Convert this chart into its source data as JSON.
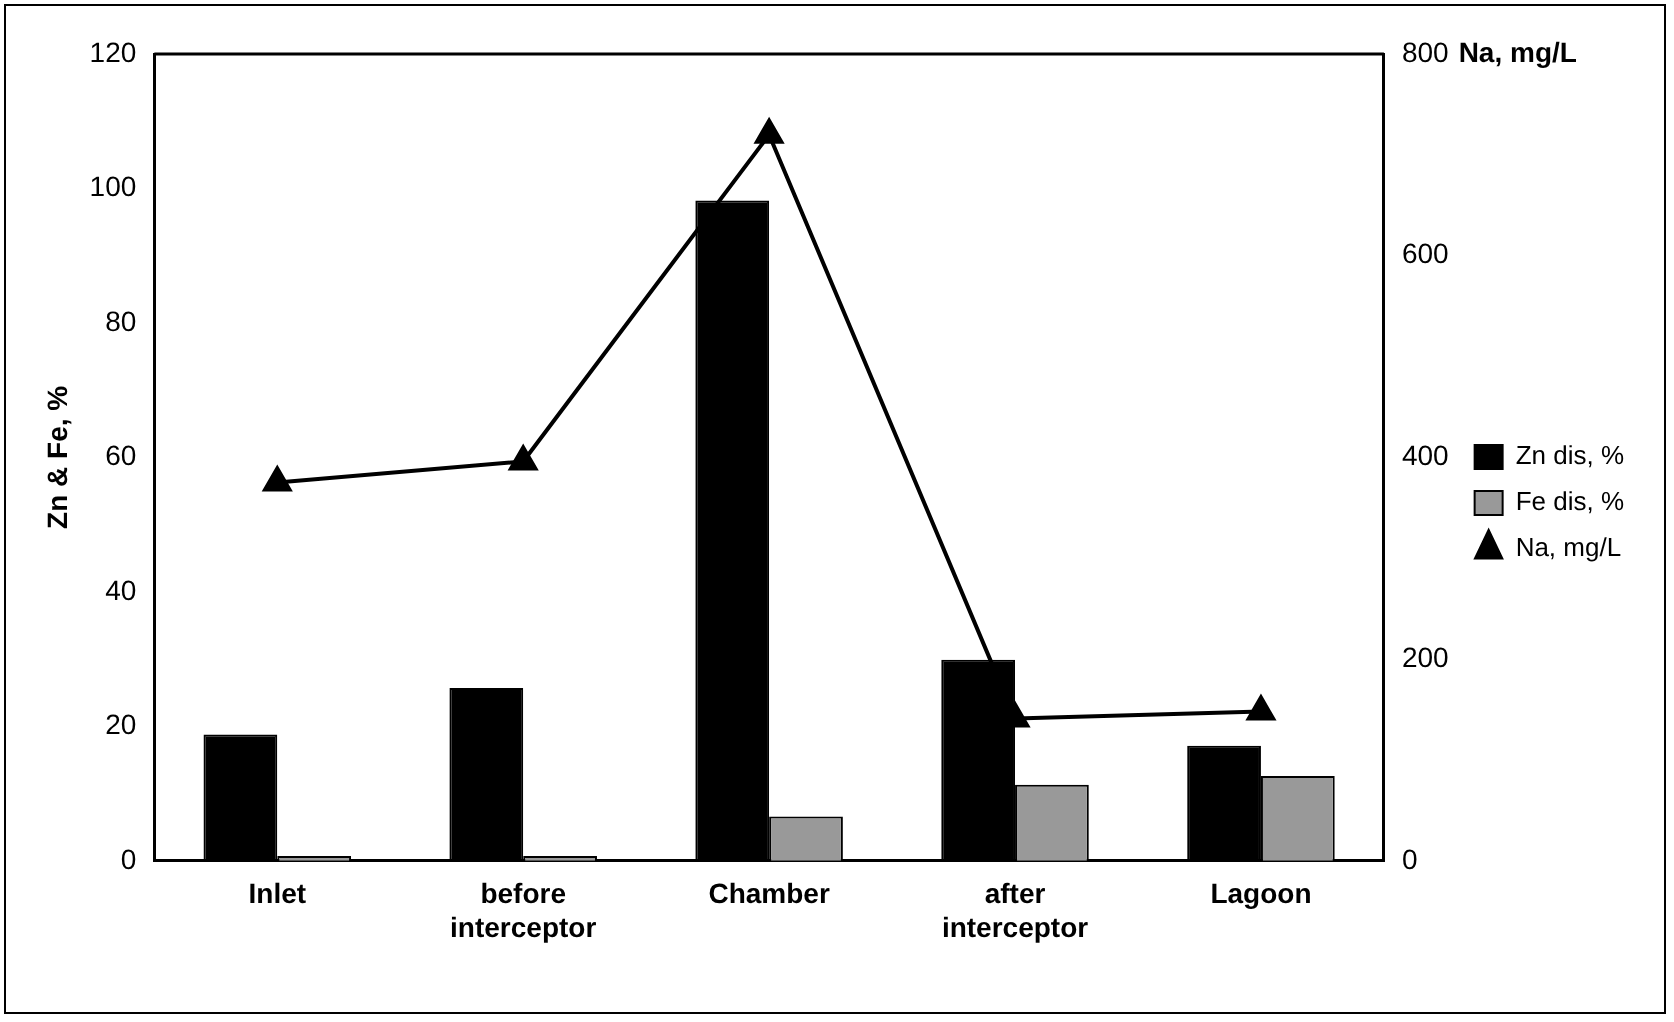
{
  "chart_data": {
    "type": "bar",
    "ylabel": "Zn & Fe, %",
    "y2label": "Na, mg/L",
    "categories": [
      "Inlet",
      "before interceptor",
      "Chamber",
      "after interceptor",
      "Lagoon"
    ],
    "series": [
      {
        "name": "Zn dis, %",
        "color": "#000000",
        "values": [
          18.8,
          25.7,
          98.2,
          29.9,
          17.1
        ]
      },
      {
        "name": "Fe dis, %",
        "color": "#999999",
        "values": [
          0.7,
          0.7,
          6.6,
          11.3,
          12.6
        ]
      },
      {
        "name": "Na, mg/L",
        "type": "line",
        "axis": "y2",
        "color": "#000000",
        "marker": "triangle",
        "values": [
          375,
          396,
          720,
          141,
          148
        ]
      }
    ],
    "ylim": [
      0,
      120
    ],
    "yticks": [
      0,
      20,
      40,
      60,
      80,
      100,
      120
    ],
    "y2lim": [
      0,
      800
    ],
    "y2ticks": [
      0,
      200,
      400,
      600,
      800
    ],
    "grid": false,
    "legend": "right"
  }
}
